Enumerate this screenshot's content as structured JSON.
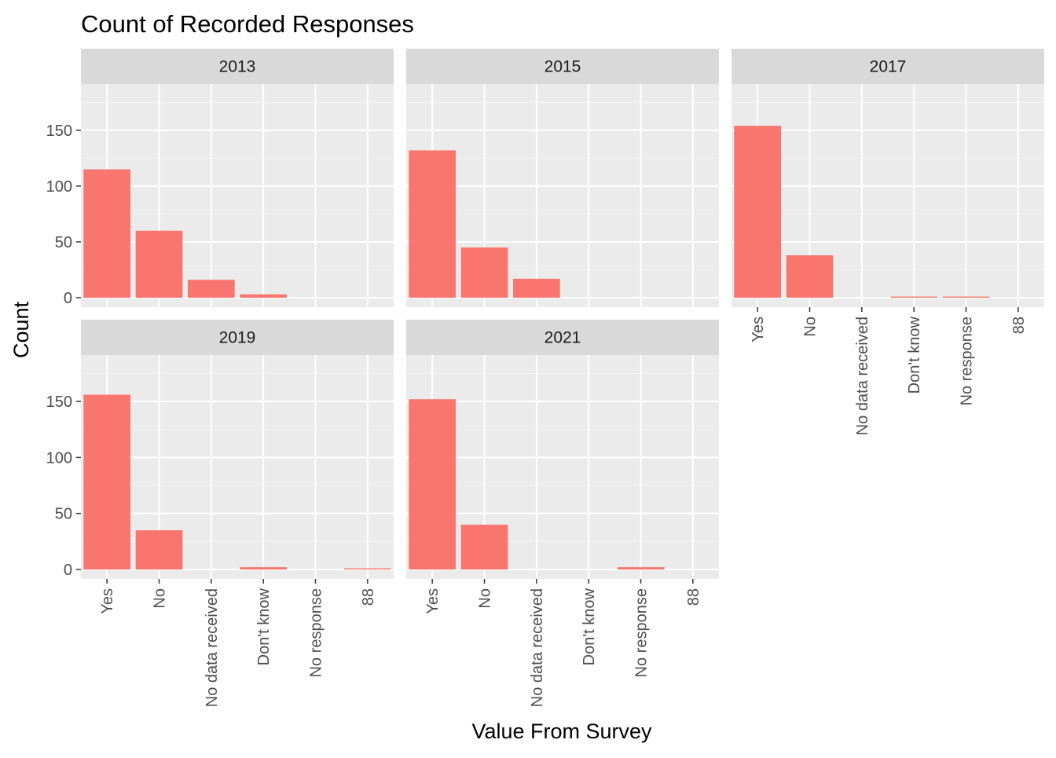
{
  "chart_data": {
    "type": "bar",
    "title": "Count of Recorded Responses",
    "xlabel": "Value From Survey",
    "ylabel": "Count",
    "categories": [
      "Yes",
      "No",
      "No data received",
      "Don't know",
      "No response",
      "88"
    ],
    "ylim": [
      0,
      190
    ],
    "yticks": [
      0,
      50,
      100,
      150
    ],
    "grid": true,
    "legend": "none",
    "colors": {
      "bar": "#F8766D",
      "panel": "#EBEBEB",
      "strip": "#D9D9D9",
      "grid_major": "#FFFFFF",
      "tick_text": "#4D4D4D"
    },
    "facets": [
      {
        "label": "2013",
        "values": [
          115,
          60,
          16,
          3,
          0,
          0
        ]
      },
      {
        "label": "2015",
        "values": [
          132,
          45,
          17,
          0,
          0,
          0
        ]
      },
      {
        "label": "2017",
        "values": [
          154,
          38,
          0,
          1,
          1,
          0
        ]
      },
      {
        "label": "2019",
        "values": [
          156,
          35,
          0,
          2,
          0,
          1
        ]
      },
      {
        "label": "2021",
        "values": [
          152,
          40,
          0,
          0,
          2,
          0
        ]
      }
    ]
  }
}
